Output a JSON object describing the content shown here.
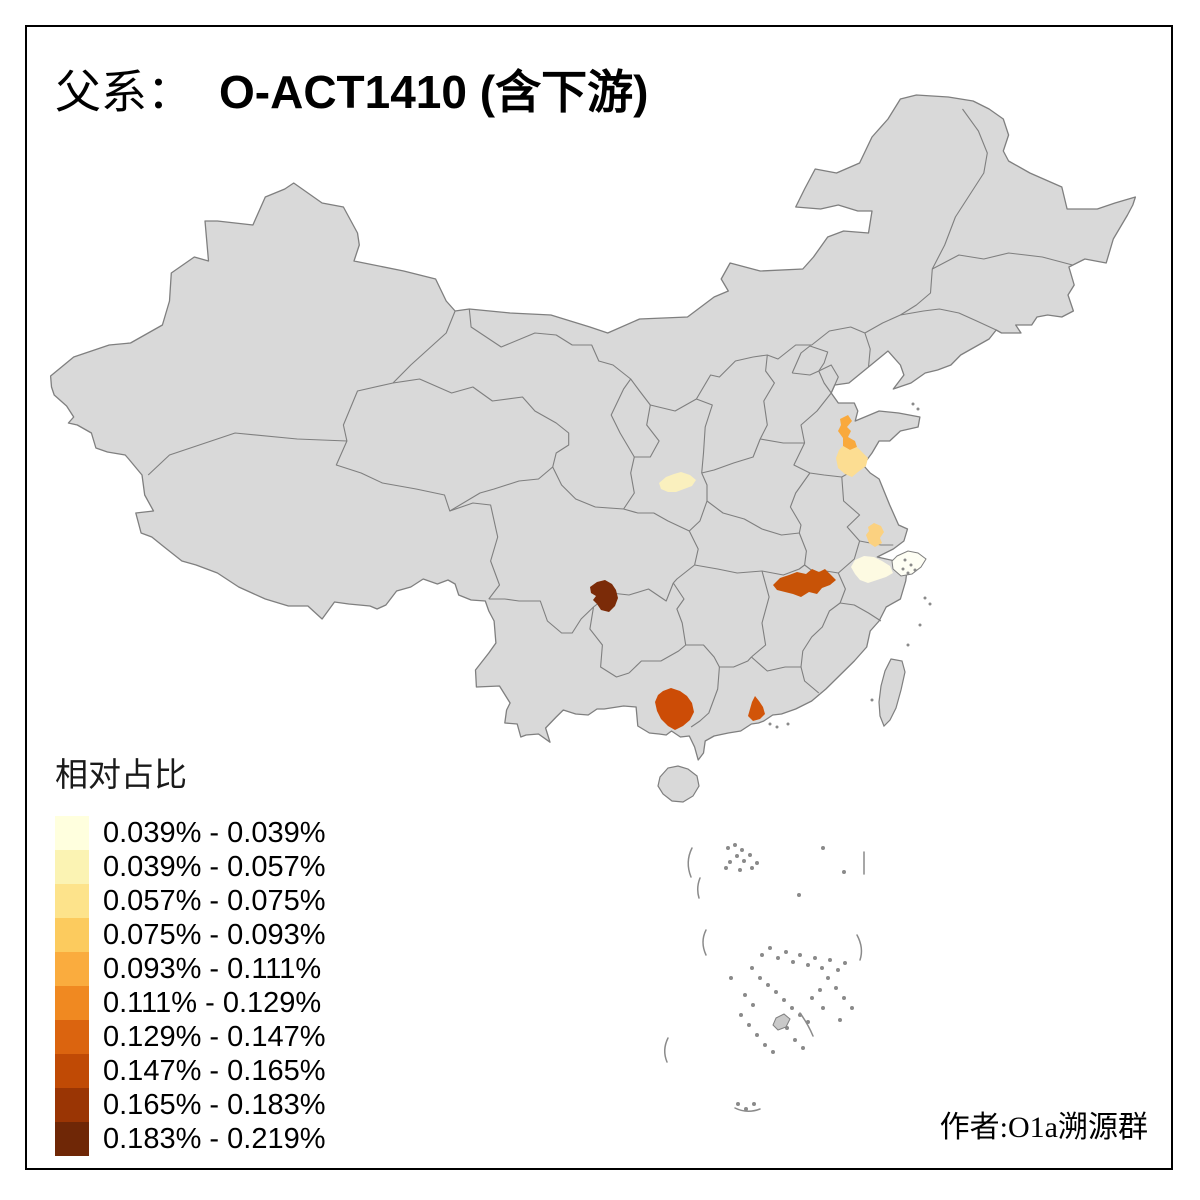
{
  "title": {
    "prefix": "父系：",
    "main": "O-ACT1410 (含下游)"
  },
  "legend": {
    "title": "相对占比",
    "items": [
      {
        "label": "0.039% - 0.039%",
        "color": "#FFFFDE"
      },
      {
        "label": "0.039% - 0.057%",
        "color": "#FBF3B3"
      },
      {
        "label": "0.057% - 0.075%",
        "color": "#FDE38B"
      },
      {
        "label": "0.075% - 0.093%",
        "color": "#FCCB5E"
      },
      {
        "label": "0.093% - 0.111%",
        "color": "#FAAC3E"
      },
      {
        "label": "0.111% - 0.129%",
        "color": "#F08921"
      },
      {
        "label": "0.129% - 0.147%",
        "color": "#DB640F"
      },
      {
        "label": "0.147% - 0.165%",
        "color": "#C04A05"
      },
      {
        "label": "0.165% - 0.183%",
        "color": "#9A3504"
      },
      {
        "label": "0.183% - 0.219%",
        "color": "#6F2706"
      }
    ]
  },
  "credit": "作者:O1a溯源群",
  "map": {
    "land_color": "#D9D9D9",
    "boundary_color": "#7F7F7F",
    "background_color": "#FFFFFF",
    "island_dot_color": "#8A8A8A",
    "highlighted_regions": [
      {
        "id": "region-1",
        "color": "#F9A93C"
      },
      {
        "id": "region-2",
        "color": "#FCDD92"
      },
      {
        "id": "region-3",
        "color": "#FAF0BE"
      },
      {
        "id": "region-4",
        "color": "#FBD180"
      },
      {
        "id": "region-5",
        "color": "#FDFAE2"
      },
      {
        "id": "region-6",
        "color": "#FEFEF4"
      },
      {
        "id": "region-7",
        "color": "#C85307"
      },
      {
        "id": "region-8",
        "color": "#7B2B08"
      },
      {
        "id": "region-9",
        "color": "#CC4C06"
      },
      {
        "id": "region-10",
        "color": "#D15409"
      }
    ]
  }
}
